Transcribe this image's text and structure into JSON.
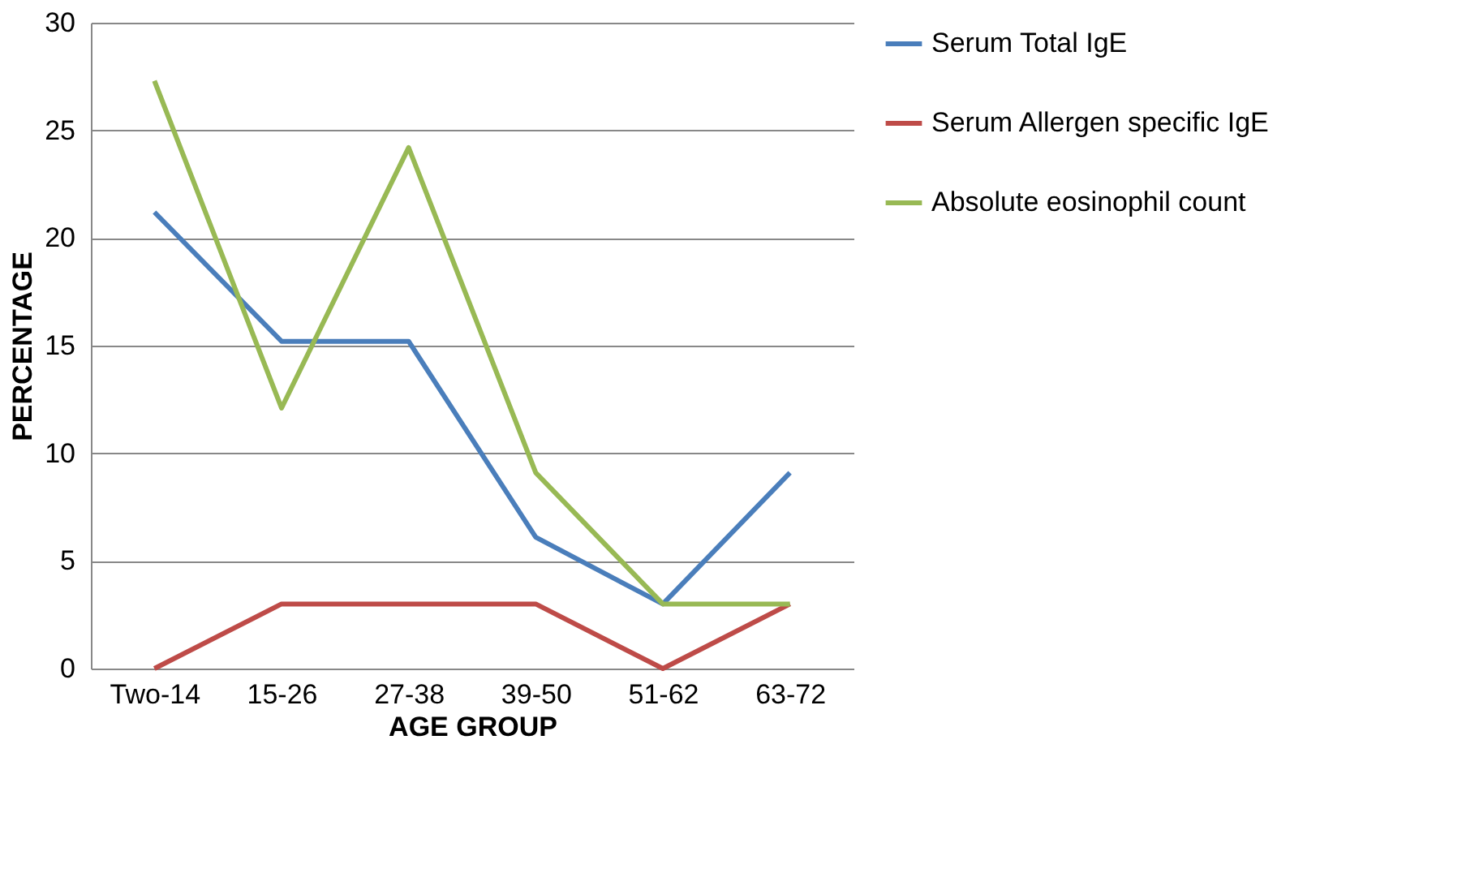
{
  "chart_data": {
    "type": "line",
    "xlabel": "AGE GROUP",
    "ylabel": "PERCENTAGE",
    "categories": [
      "Two-14",
      "15-26",
      "27-38",
      "39-50",
      "51-62",
      "63-72"
    ],
    "series": [
      {
        "name": "Serum Total  IgE",
        "color": "#4a7ebb",
        "values": [
          21.2,
          15.2,
          15.2,
          6.1,
          3.0,
          9.1
        ]
      },
      {
        "name": "Serum Allergen specific IgE",
        "color": "#be4b48",
        "values": [
          0,
          3.0,
          3.0,
          3.0,
          0,
          3.0
        ]
      },
      {
        "name": "Absolute eosinophil count",
        "color": "#98b954",
        "values": [
          27.3,
          12.1,
          24.2,
          9.1,
          3.0,
          3.0
        ]
      }
    ],
    "ylim": [
      0,
      30
    ],
    "yticks": [
      0,
      5,
      10,
      15,
      20,
      25,
      30
    ],
    "grid": "y",
    "legend": "right",
    "marker": "none",
    "line_style": "solid"
  }
}
